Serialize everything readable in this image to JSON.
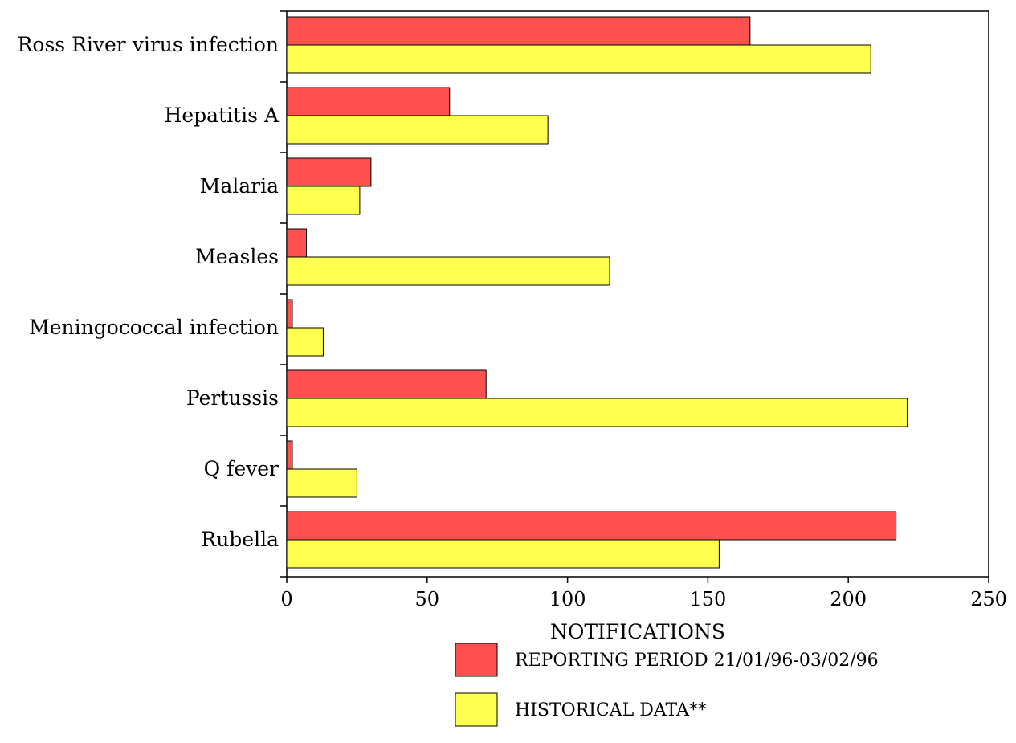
{
  "chart_data": {
    "type": "bar",
    "orientation": "horizontal",
    "categories": [
      "Ross River virus infection",
      "Hepatitis A",
      "Malaria",
      "Measles",
      "Meningococcal infection",
      "Pertussis",
      "Q fever",
      "Rubella"
    ],
    "series": [
      {
        "name": "REPORTING PERIOD 21/01/96-03/02/96",
        "color": "#ff5050",
        "values": [
          165,
          58,
          30,
          7,
          2,
          71,
          2,
          217
        ]
      },
      {
        "name": "HISTORICAL DATA**",
        "color": "#ffff50",
        "values": [
          208,
          93,
          26,
          115,
          13,
          221,
          25,
          154
        ]
      }
    ],
    "xlabel": "NOTIFICATIONS",
    "xlim": [
      0,
      250
    ],
    "xticks": [
      0,
      50,
      100,
      150,
      200,
      250
    ],
    "grid": false,
    "legend_position": "bottom"
  }
}
